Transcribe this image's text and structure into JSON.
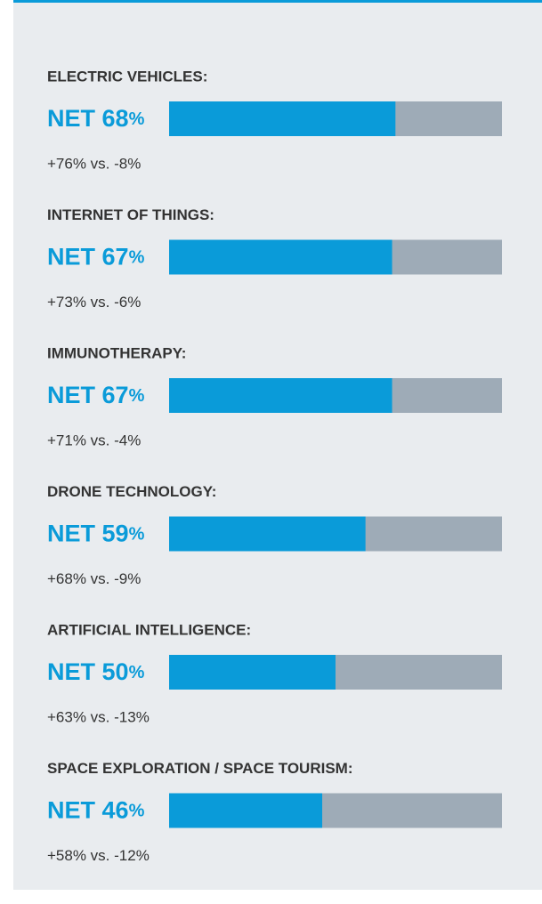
{
  "chart_data": {
    "type": "bar",
    "categories": [
      "ELECTRIC VEHICLES:",
      "INTERNET OF THINGS:",
      "IMMUNOTHERAPY:",
      "DRONE TECHNOLOGY:",
      "ARTIFICIAL INTELLIGENCE:",
      "SPACE EXPLORATION / SPACE TOURISM:"
    ],
    "values": [
      68,
      67,
      67,
      59,
      50,
      46
    ],
    "value_labels": [
      "68%",
      "67%",
      "67%",
      "59%",
      "50%",
      "46%"
    ],
    "value_prefix": "NET",
    "details": [
      "+76% vs. -8%",
      "+73% vs. -6%",
      "+71% vs. -4%",
      "+68% vs. -9%",
      "+63% vs. -13%",
      "+58% vs. -12%"
    ],
    "color": "#0a9bd9",
    "track_color": "#9eabb7",
    "xlim": [
      0,
      100
    ]
  }
}
